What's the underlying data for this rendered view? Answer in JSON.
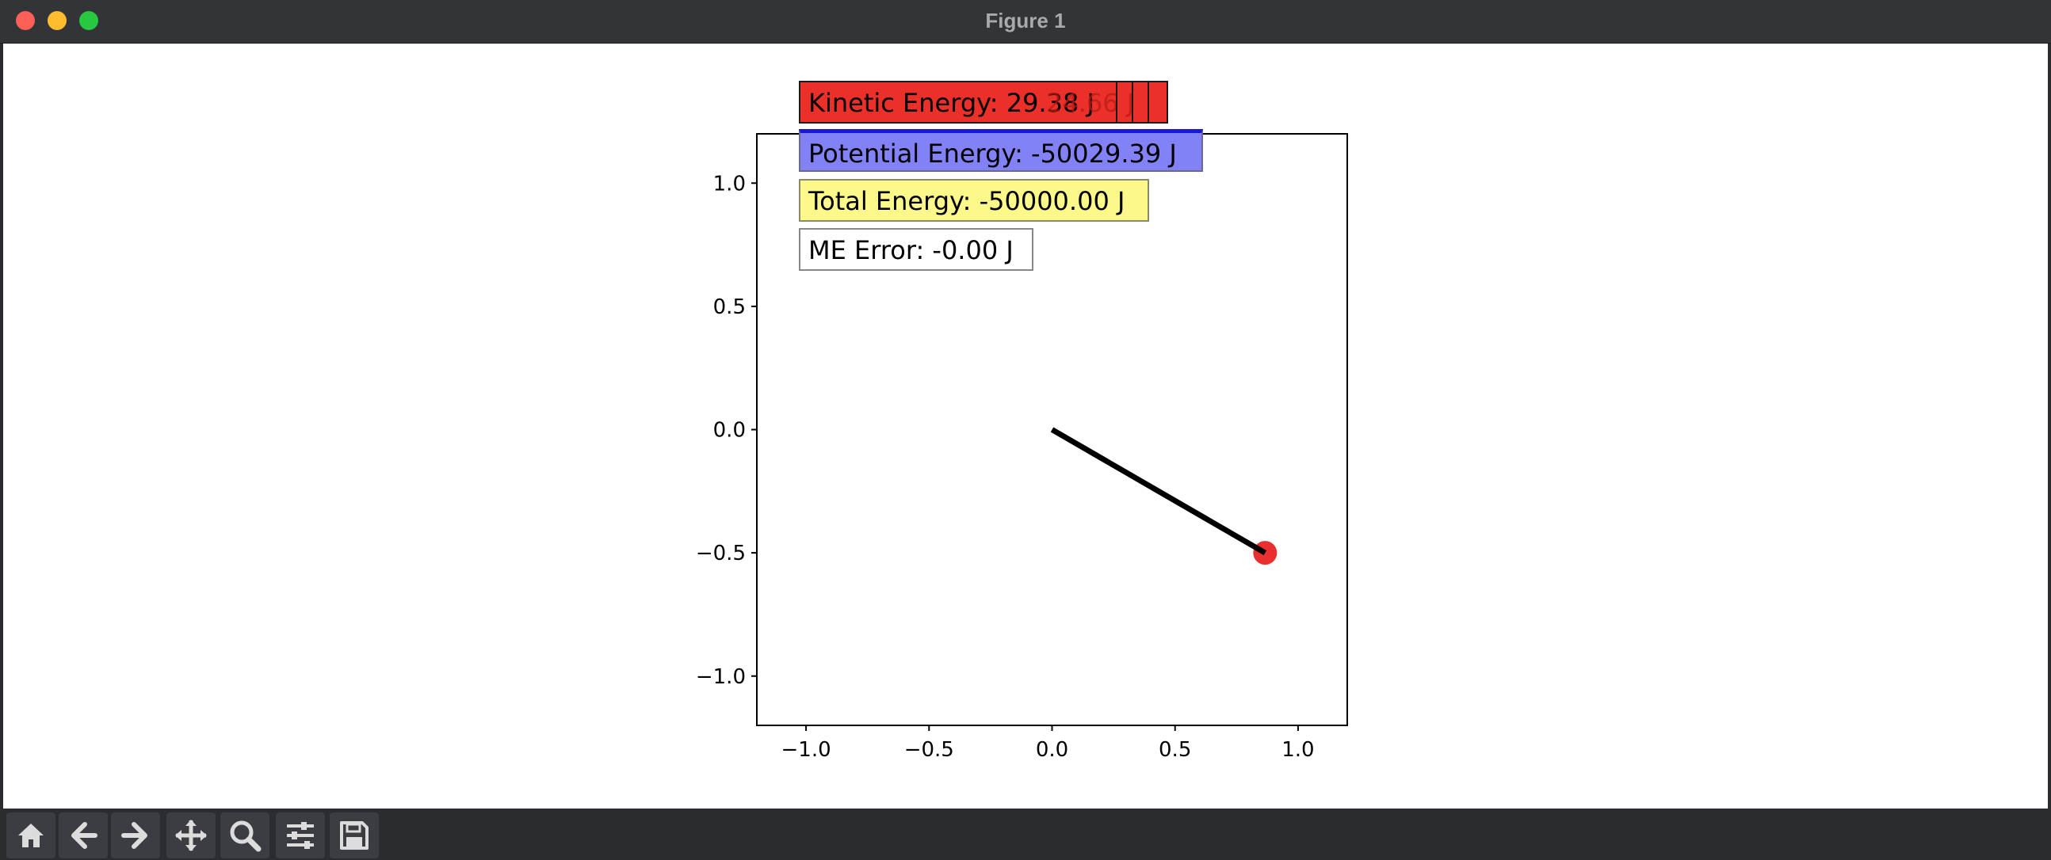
{
  "window": {
    "title": "Figure 1"
  },
  "energies": {
    "kinetic_label": "Kinetic Energy: 29.38 J",
    "kinetic_overlap_text": "24.66 J",
    "potential_label": "Potential Energy: -50029.39 J",
    "total_label": "Total Energy: -50000.00 J",
    "me_error_label": "ME Error: -0.00 J"
  },
  "colors": {
    "kinetic_box": "#ea3028",
    "potential_box": "#8282f6",
    "total_box": "#fdf88a",
    "me_box": "#ffffff",
    "bob": "#e83030",
    "rod": "#000000"
  },
  "chart_data": {
    "type": "line",
    "title": "",
    "xlabel": "",
    "ylabel": "",
    "xlim": [
      -1.2,
      1.2
    ],
    "ylim": [
      -1.2,
      1.2
    ],
    "x_ticks": [
      -1.0,
      -0.5,
      0.0,
      0.5,
      1.0
    ],
    "y_ticks": [
      1.0,
      0.5,
      0.0,
      -0.5,
      -1.0
    ],
    "x_tick_labels": [
      "−1.0",
      "−0.5",
      "0.0",
      "0.5",
      "1.0"
    ],
    "y_tick_labels": [
      "1.0",
      "0.5",
      "0.0",
      "−0.5",
      "−1.0"
    ],
    "grid": false,
    "series": [
      {
        "x": [
          0.0,
          0.866
        ],
        "y": [
          0.0,
          -0.5
        ]
      }
    ],
    "bob": {
      "x": 0.866,
      "y": -0.5
    }
  },
  "toolbar": {
    "buttons": [
      {
        "name": "home-button",
        "icon": "home-icon"
      },
      {
        "name": "back-button",
        "icon": "arrow-left-icon"
      },
      {
        "name": "forward-button",
        "icon": "arrow-right-icon"
      },
      {
        "name": "pan-button",
        "icon": "move-icon"
      },
      {
        "name": "zoom-button",
        "icon": "magnifier-icon"
      },
      {
        "name": "configure-subplots-button",
        "icon": "sliders-icon"
      },
      {
        "name": "save-button",
        "icon": "floppy-disk-icon"
      }
    ]
  }
}
